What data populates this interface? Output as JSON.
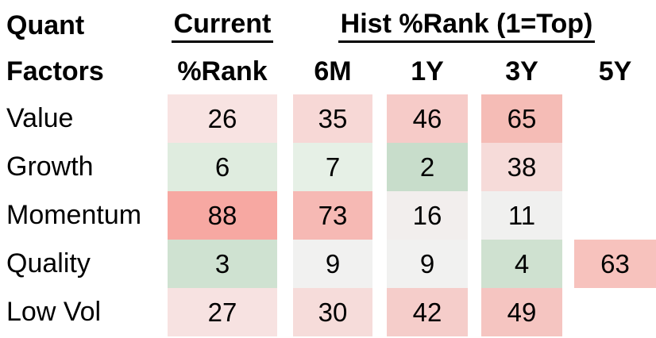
{
  "table": {
    "title_line1": "Quant",
    "title_line2": "Factors",
    "current_label": "Current",
    "current_sub_label": "%Rank",
    "hist_label": "Hist %Rank (1=Top)",
    "hist_columns": [
      "6M",
      "1Y",
      "3Y",
      "5Y"
    ],
    "rows": [
      {
        "label": "Value",
        "cells": [
          {
            "v": "26",
            "bg": "#f8e3e2"
          },
          {
            "v": "35",
            "bg": "#f7d8d6"
          },
          {
            "v": "46",
            "bg": "#f6cbc8"
          },
          {
            "v": "65",
            "bg": "#f5bcb6"
          },
          {
            "v": "",
            "bg": ""
          }
        ]
      },
      {
        "label": "Growth",
        "cells": [
          {
            "v": "6",
            "bg": "#dfecdf"
          },
          {
            "v": "7",
            "bg": "#e6f0e6"
          },
          {
            "v": "2",
            "bg": "#c8ddcb"
          },
          {
            "v": "38",
            "bg": "#f6dbd9"
          },
          {
            "v": "",
            "bg": ""
          }
        ]
      },
      {
        "label": "Momentum",
        "cells": [
          {
            "v": "88",
            "bg": "#f7a8a2"
          },
          {
            "v": "73",
            "bg": "#f6b9b4"
          },
          {
            "v": "16",
            "bg": "#f2eeed"
          },
          {
            "v": "11",
            "bg": "#f0f0ef"
          },
          {
            "v": "",
            "bg": ""
          }
        ]
      },
      {
        "label": "Quality",
        "cells": [
          {
            "v": "3",
            "bg": "#cfe2d1"
          },
          {
            "v": "9",
            "bg": "#f1f1f0"
          },
          {
            "v": "9",
            "bg": "#f1f1f0"
          },
          {
            "v": "4",
            "bg": "#cfe1d0"
          },
          {
            "v": "63",
            "bg": "#f7c2bd"
          }
        ]
      },
      {
        "label": "Low Vol",
        "cells": [
          {
            "v": "27",
            "bg": "#f7e2e1"
          },
          {
            "v": "30",
            "bg": "#f6dcda"
          },
          {
            "v": "42",
            "bg": "#f5cdca"
          },
          {
            "v": "49",
            "bg": "#f5c5c1"
          },
          {
            "v": "",
            "bg": ""
          }
        ]
      }
    ]
  },
  "colors": {
    "best_green": "#c8ddcb",
    "neutral": "#f1f1f0",
    "worst_red": "#f7a8a2",
    "text": "#000000",
    "background": "#ffffff"
  },
  "chart_data": {
    "type": "heatmap",
    "title": "Quant Factors %Rank",
    "row_labels": [
      "Value",
      "Growth",
      "Momentum",
      "Quality",
      "Low Vol"
    ],
    "column_groups": [
      {
        "label": "Current",
        "columns": [
          "%Rank"
        ]
      },
      {
        "label": "Hist %Rank (1=Top)",
        "columns": [
          "6M",
          "1Y",
          "3Y",
          "5Y"
        ]
      }
    ],
    "columns": [
      "Current %Rank",
      "6M",
      "1Y",
      "3Y",
      "5Y"
    ],
    "values": [
      [
        26,
        35,
        46,
        65,
        null
      ],
      [
        6,
        7,
        2,
        38,
        null
      ],
      [
        88,
        73,
        16,
        11,
        null
      ],
      [
        3,
        9,
        9,
        4,
        63
      ],
      [
        27,
        30,
        42,
        49,
        null
      ]
    ],
    "scale": "Percentile rank 1=Top; low values shaded green, mid ~neutral gray, high values shaded red",
    "legend_position": "none",
    "grid": false
  }
}
